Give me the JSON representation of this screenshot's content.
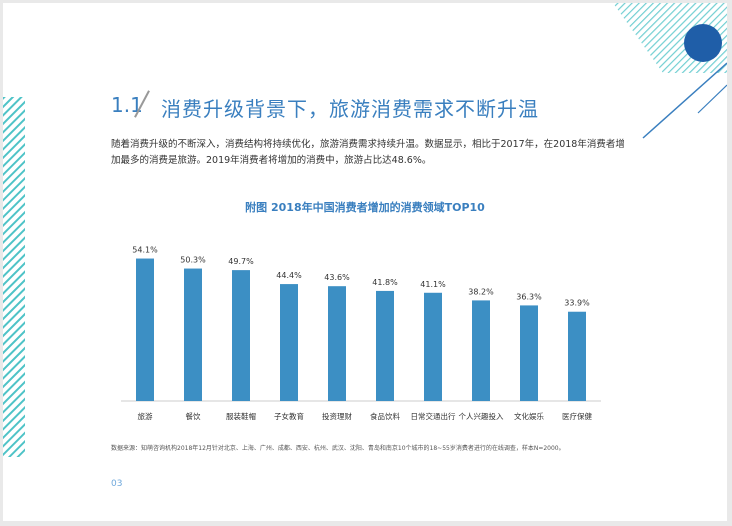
{
  "section": {
    "number": "1.1",
    "title": "消费升级背景下，旅游消费需求不断升温"
  },
  "body_text": "随着消费升级的不断深入，消费结构将持续优化，旅游消费需求持续升温。数据显示，相比于2017年，在2018年消费者增加最多的消费是旅游。2019年消费者将增加的消费中，旅游占比达48.6%。",
  "chart_data": {
    "type": "bar",
    "title": "附图  2018年中国消费者增加的消费领域TOP10",
    "categories": [
      "旅游",
      "餐饮",
      "服装鞋帽",
      "子女教育",
      "投资理财",
      "食品饮料",
      "日常交通出行",
      "个人兴趣投入",
      "文化娱乐",
      "医疗保健"
    ],
    "values": [
      54.1,
      50.3,
      49.7,
      44.4,
      43.6,
      41.8,
      41.1,
      38.2,
      36.3,
      33.9
    ],
    "value_labels": [
      "54.1%",
      "50.3%",
      "49.7%",
      "44.4%",
      "43.6%",
      "41.8%",
      "41.1%",
      "38.2%",
      "36.3%",
      "33.9%"
    ],
    "ylim": [
      0,
      60
    ],
    "bar_color": "#3c8fc4",
    "grid": false
  },
  "source": "数据来源：知萌咨询机构2018年12月针对北京、上海、广州、成都、西安、杭州、武汉、沈阳、青岛和南京10个城市的18~55岁消费者进行的在线调查，样本N=2000。",
  "page_number": "03",
  "colors": {
    "accent": "#3a7fbf",
    "circle": "#1f5ea8",
    "stripe": "#4ec3c7"
  }
}
